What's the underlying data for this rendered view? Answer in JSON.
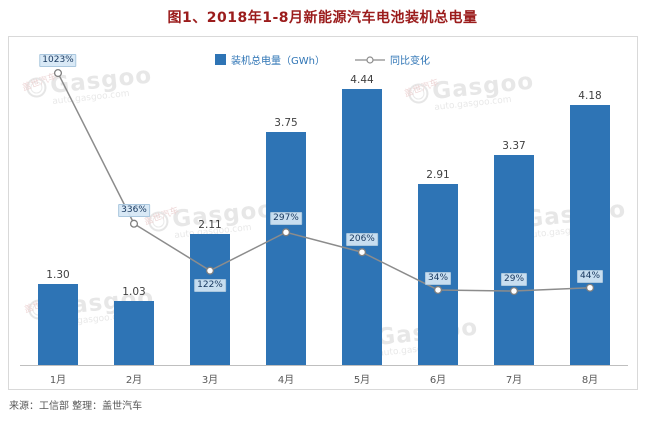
{
  "title": "图1、2018年1-8月新能源汽车电池装机总电量",
  "legend": {
    "bar_label": "装机总电量（GWh）",
    "line_label": "同比变化"
  },
  "source": "来源：工信部  整理：盖世汽车",
  "watermark": {
    "brand": "Gasgoo",
    "cn": "盖世汽车",
    "url": "auto.gasgoo.com"
  },
  "colors": {
    "bar": "#2e74b5",
    "line": "#8c8c8c",
    "marker_fill": "#ffffff",
    "marker_stroke": "#7f7f7f",
    "title": "#9b1c1c",
    "pct_text": "#17375e"
  },
  "chart_data": {
    "type": "bar",
    "subtype": "bar+line combo",
    "title": "图1、2018年1-8月新能源汽车电池装机总电量",
    "categories": [
      "1月",
      "2月",
      "3月",
      "4月",
      "5月",
      "6月",
      "7月",
      "8月"
    ],
    "series": [
      {
        "name": "装机总电量（GWh）",
        "type": "bar",
        "unit": "GWh",
        "values": [
          1.3,
          1.03,
          2.11,
          3.75,
          4.44,
          2.91,
          3.37,
          4.18
        ],
        "labels": [
          "1.30",
          "1.03",
          "2.11",
          "3.75",
          "4.44",
          "2.91",
          "3.37",
          "4.18"
        ]
      },
      {
        "name": "同比变化",
        "type": "line",
        "unit": "%",
        "values": [
          1023,
          336,
          122,
          297,
          206,
          34,
          29,
          44
        ],
        "labels": [
          "1023%",
          "336%",
          "122%",
          "297%",
          "206%",
          "34%",
          "29%",
          "44%"
        ]
      }
    ],
    "xlabel": "",
    "ylabel": "",
    "ylim_bar": [
      0,
      4.8
    ],
    "grid": false,
    "legend_position": "top",
    "source": "来源：工信部  整理：盖世汽车"
  }
}
